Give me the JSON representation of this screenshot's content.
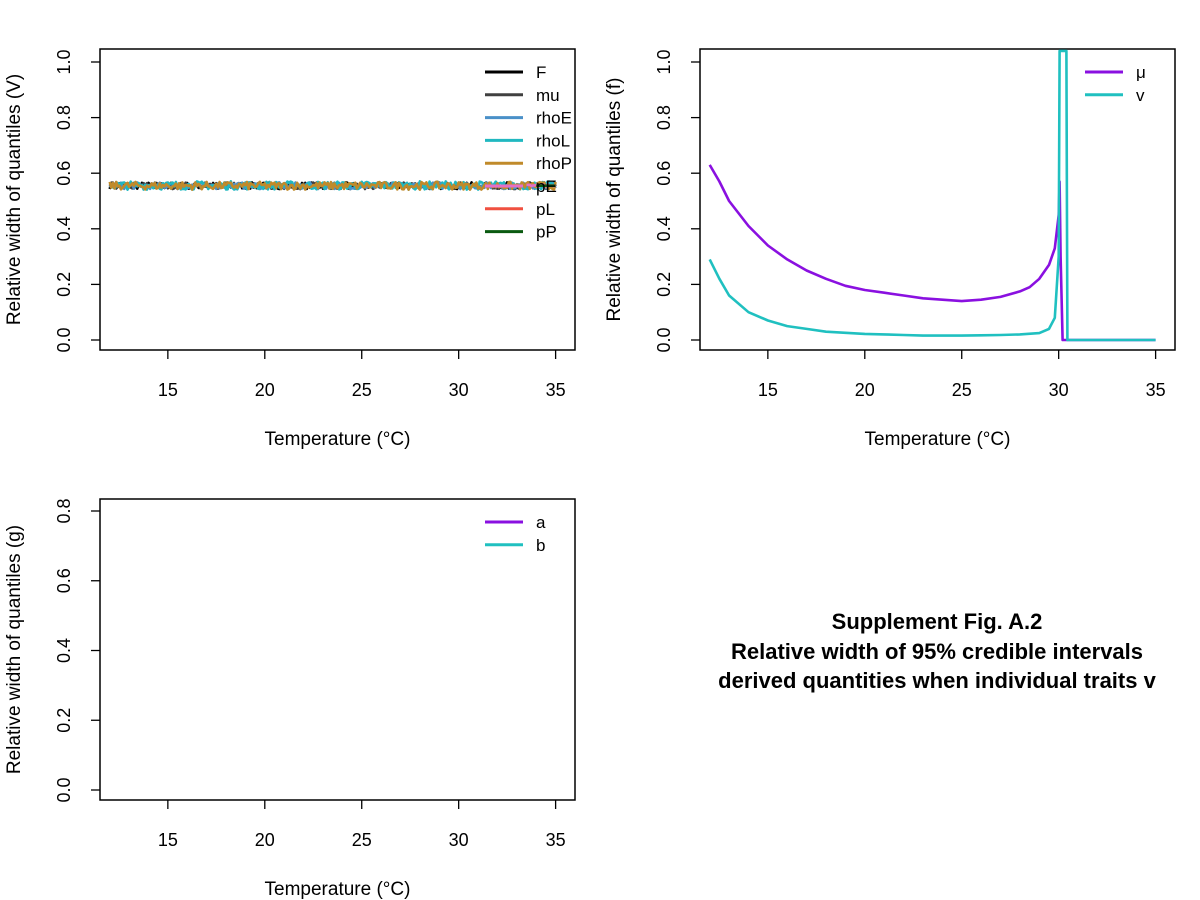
{
  "figure": {
    "caption": [
      "Supplement Fig. A.2",
      "Relative width of 95% credible intervals",
      "derived quantities when individual traits v"
    ]
  },
  "chart_data": [
    {
      "id": "V",
      "type": "line",
      "xlabel": "Temperature (°C)",
      "ylabel": "Relative width of quantiles (V)",
      "xlim": [
        11.5,
        36
      ],
      "ylim": [
        0,
        1
      ],
      "xticks": [
        15,
        20,
        25,
        30,
        35
      ],
      "yticks": [
        0.0,
        0.2,
        0.4,
        0.6,
        0.8,
        1.0
      ],
      "ytick_labels": [
        "0.0",
        "0.2",
        "0.4",
        "0.6",
        "0.8",
        "1.0"
      ],
      "legend_position": "top-right",
      "series": [
        {
          "name": "F",
          "color": "#000000",
          "mean": 0.555,
          "noise": 0.012,
          "x_range": [
            12,
            35
          ]
        },
        {
          "name": "mu",
          "color": "#404040",
          "mean": 0.555,
          "noise": 0.012,
          "x_range": [
            12,
            35
          ]
        },
        {
          "name": "rhoE",
          "color": "#4a90c8",
          "mean": 0.555,
          "noise": 0.012,
          "x_range": [
            12,
            35
          ]
        },
        {
          "name": "rhoL",
          "color": "#20b8c0",
          "mean": 0.556,
          "noise": 0.015,
          "x_range": [
            12,
            35
          ]
        },
        {
          "name": "rhoP",
          "color": "#c08a2a",
          "mean": 0.555,
          "noise": 0.014,
          "x_range": [
            12,
            35
          ]
        },
        {
          "name": "pE",
          "color": "#e46ec8",
          "mean": 0.555,
          "noise": 0.004,
          "x_range": [
            33.5,
            35
          ]
        },
        {
          "name": "pL",
          "color": "#f05040",
          "mean": 0.555,
          "noise": 0.0,
          "x_range": [
            34,
            35
          ]
        },
        {
          "name": "pP",
          "color": "#0a5a10",
          "mean": 0.555,
          "noise": 0.0,
          "x_range": [
            34,
            35
          ]
        }
      ]
    },
    {
      "id": "f",
      "type": "line",
      "xlabel": "Temperature (°C)",
      "ylabel": "Relative width of quantiles (f)",
      "xlim": [
        11.5,
        36
      ],
      "ylim": [
        0,
        1
      ],
      "xticks": [
        15,
        20,
        25,
        30,
        35
      ],
      "yticks": [
        0.0,
        0.2,
        0.4,
        0.6,
        0.8,
        1.0
      ],
      "ytick_labels": [
        "0.0",
        "0.2",
        "0.4",
        "0.6",
        "0.8",
        "1.0"
      ],
      "legend_position": "top-right",
      "series": [
        {
          "name": "μ",
          "color": "#8a10e0",
          "x": [
            12,
            12.5,
            13,
            14,
            15,
            16,
            17,
            18,
            19,
            20,
            21,
            22,
            23,
            24,
            25,
            26,
            27,
            28,
            28.5,
            29,
            29.5,
            29.8,
            30,
            30.05,
            30.1,
            30.2,
            30.3,
            30.5,
            31,
            32,
            33,
            34,
            35
          ],
          "y": [
            0.63,
            0.57,
            0.5,
            0.41,
            0.34,
            0.29,
            0.25,
            0.22,
            0.195,
            0.18,
            0.17,
            0.16,
            0.15,
            0.145,
            0.14,
            0.145,
            0.155,
            0.175,
            0.19,
            0.22,
            0.27,
            0.33,
            0.45,
            0.57,
            0.3,
            0.0,
            0.0,
            0.0,
            0.0,
            0.0,
            0.0,
            0.0,
            0.0
          ]
        },
        {
          "name": "v",
          "color": "#20c0c0",
          "x": [
            12,
            12.5,
            13,
            14,
            15,
            16,
            17,
            18,
            19,
            20,
            21,
            22,
            23,
            24,
            25,
            26,
            27,
            28,
            29,
            29.5,
            29.8,
            30,
            30.05,
            30.1,
            30.4,
            30.45,
            30.5,
            31,
            32,
            33,
            34,
            35
          ],
          "y": [
            0.29,
            0.22,
            0.16,
            0.1,
            0.07,
            0.05,
            0.04,
            0.03,
            0.026,
            0.022,
            0.02,
            0.018,
            0.016,
            0.016,
            0.016,
            0.017,
            0.018,
            0.02,
            0.025,
            0.04,
            0.08,
            0.3,
            1.04,
            1.04,
            1.04,
            0.0,
            0.0,
            0.0,
            0.0,
            0.0,
            0.0,
            0.0
          ]
        }
      ]
    },
    {
      "id": "g",
      "type": "line",
      "xlabel": "Temperature (°C)",
      "ylabel": "Relative width of quantiles (g)",
      "xlim": [
        11.5,
        36
      ],
      "ylim": [
        0,
        0.8
      ],
      "xticks": [
        15,
        20,
        25,
        30,
        35
      ],
      "yticks": [
        0.0,
        0.2,
        0.4,
        0.6,
        0.8
      ],
      "ytick_labels": [
        "0.0",
        "0.2",
        "0.4",
        "0.6",
        "0.8"
      ],
      "legend_position": "top-right",
      "series": [
        {
          "name": "a",
          "color": "#8a10e0",
          "x": [],
          "y": []
        },
        {
          "name": "b",
          "color": "#20c0c0",
          "x": [],
          "y": []
        }
      ]
    }
  ]
}
